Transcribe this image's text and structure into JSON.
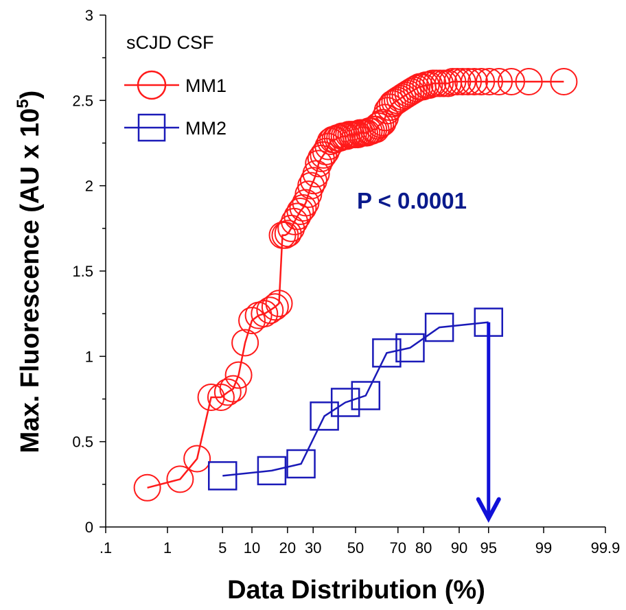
{
  "chart_data": {
    "type": "scatter",
    "xscale": "normal-probability",
    "x_tick_labels": [
      ".1",
      "1",
      "5",
      "10",
      "20",
      "30",
      "50",
      "70",
      "80",
      "90",
      "95",
      "99",
      "99.9"
    ],
    "x_ticks": [
      0.1,
      1,
      5,
      10,
      20,
      30,
      50,
      70,
      80,
      90,
      95,
      99,
      99.9
    ],
    "ylim": [
      0,
      3
    ],
    "y_ticks": [
      0,
      0.5,
      1,
      1.5,
      2,
      2.5,
      3
    ],
    "y_tick_labels": [
      "0",
      "0.5",
      "1",
      "1.5",
      "2",
      "2.5",
      "3"
    ],
    "xlabel": "Data Distribution (%)",
    "ylabel": "Max. Fluorescence (AU x 10",
    "ylabel_exp": "5",
    "ylabel_end": ")",
    "legend": {
      "title": "sCJD CSF",
      "placement": "top-left"
    },
    "annotation": {
      "text": "P < 0.0001",
      "color": "#0a1a8c"
    },
    "arrow": {
      "x": 95,
      "from_y": 1.2,
      "to_y": 0.05,
      "color": "#1010d8"
    },
    "series": [
      {
        "name": "MM1",
        "marker": "circle",
        "color": "#ff1a1a",
        "x": [
          0.5,
          1.5,
          2.5,
          3.7,
          4.8,
          5.7,
          6.5,
          7.4,
          8.6,
          10,
          11.5,
          13,
          14.5,
          16,
          17.2,
          18.3,
          19.2,
          20.2,
          21.3,
          22.5,
          23.6,
          24.7,
          25.8,
          26.9,
          28,
          29.1,
          30.2,
          31.3,
          32.4,
          33.5,
          34.6,
          35.7,
          36.8,
          37.9,
          39,
          40.1,
          41.2,
          42.3,
          43.4,
          44.5,
          45.6,
          46.7,
          47.8,
          48.9,
          50,
          51.1,
          52.2,
          53.3,
          54.4,
          55.5,
          56.6,
          57.7,
          58.8,
          59.9,
          61,
          62.1,
          63.2,
          64.3,
          65.4,
          66.5,
          67.6,
          68.7,
          69.8,
          70.9,
          72,
          73.1,
          74.2,
          75.3,
          76.4,
          77.5,
          78.6,
          79.7,
          80.8,
          81.9,
          83,
          84.1,
          85.2,
          86.3,
          87.4,
          88.5,
          89.6,
          90.7,
          91.8,
          92.9,
          94,
          95.1,
          96.2,
          97.3,
          98.4,
          99.5
        ],
        "y": [
          0.23,
          0.28,
          0.4,
          0.76,
          0.76,
          0.79,
          0.81,
          0.89,
          1.08,
          1.21,
          1.24,
          1.25,
          1.27,
          1.29,
          1.31,
          1.71,
          1.71,
          1.72,
          1.75,
          1.79,
          1.82,
          1.85,
          1.87,
          1.9,
          1.95,
          2.0,
          2.03,
          2.07,
          2.13,
          2.16,
          2.18,
          2.2,
          2.23,
          2.26,
          2.27,
          2.27,
          2.28,
          2.28,
          2.29,
          2.29,
          2.29,
          2.3,
          2.3,
          2.3,
          2.3,
          2.3,
          2.31,
          2.31,
          2.31,
          2.31,
          2.32,
          2.32,
          2.33,
          2.33,
          2.35,
          2.36,
          2.37,
          2.4,
          2.44,
          2.46,
          2.48,
          2.49,
          2.5,
          2.51,
          2.52,
          2.53,
          2.54,
          2.55,
          2.56,
          2.57,
          2.58,
          2.58,
          2.59,
          2.59,
          2.6,
          2.6,
          2.6,
          2.6,
          2.6,
          2.61,
          2.61,
          2.61,
          2.61,
          2.61,
          2.61,
          2.61,
          2.61,
          2.61,
          2.61,
          2.61
        ]
      },
      {
        "name": "MM2",
        "marker": "square",
        "color": "#1a1ab8",
        "x": [
          5,
          15,
          25,
          35,
          45,
          55,
          65,
          75,
          85,
          95
        ],
        "y": [
          0.3,
          0.33,
          0.37,
          0.65,
          0.73,
          0.77,
          1.02,
          1.05,
          1.17,
          1.2
        ]
      }
    ]
  }
}
